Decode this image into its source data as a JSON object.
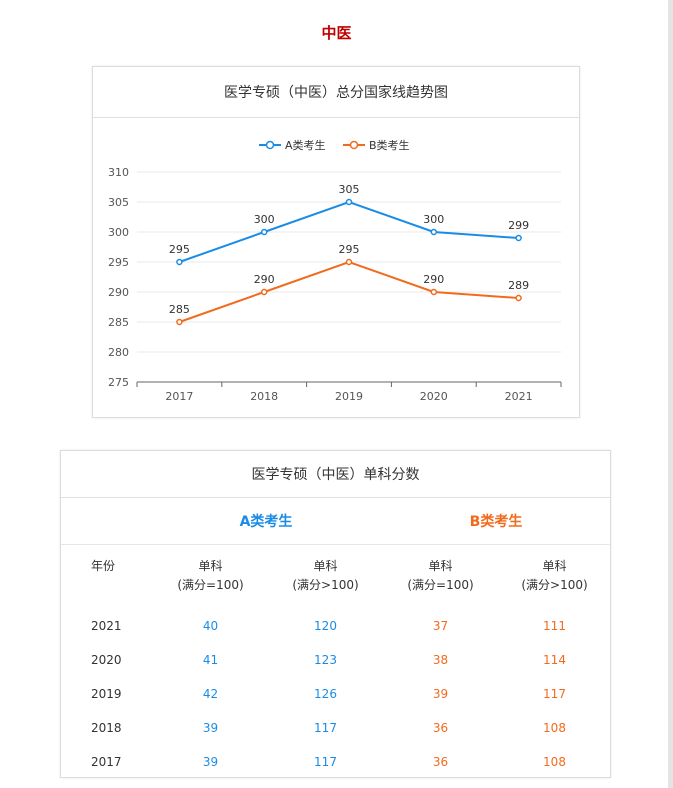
{
  "page_title": "中医",
  "chart_card": {
    "title": "医学专硕（中医）总分国家线趋势图"
  },
  "chart_data": {
    "type": "line",
    "title": "医学专硕（中医）总分国家线趋势图",
    "categories": [
      "2017",
      "2018",
      "2019",
      "2020",
      "2021"
    ],
    "series": [
      {
        "name": "A类考生",
        "values": [
          295,
          300,
          305,
          300,
          299
        ],
        "color": "#1b8ce6"
      },
      {
        "name": "B类考生",
        "values": [
          285,
          290,
          295,
          290,
          289
        ],
        "color": "#f26b1d"
      }
    ],
    "yticks": [
      275,
      280,
      285,
      290,
      295,
      300,
      305,
      310
    ],
    "ylim": [
      275,
      310
    ],
    "xlabel": "",
    "ylabel": "",
    "grid": true,
    "legend": "top-center",
    "data_labels": true
  },
  "table_card": {
    "title": "医学专硕（中医）单科分数",
    "group_a": "A类考生",
    "group_b": "B类考生",
    "year_header": "年份",
    "col_headers": [
      {
        "line1": "单科",
        "line2": "(满分=100)"
      },
      {
        "line1": "单科",
        "line2": "(满分>100)"
      },
      {
        "line1": "单科",
        "line2": "(满分=100)"
      },
      {
        "line1": "单科",
        "line2": "(满分>100)"
      }
    ],
    "rows": [
      {
        "year": "2021",
        "a100": "40",
        "a_over": "120",
        "b100": "37",
        "b_over": "111"
      },
      {
        "year": "2020",
        "a100": "41",
        "a_over": "123",
        "b100": "38",
        "b_over": "114"
      },
      {
        "year": "2019",
        "a100": "42",
        "a_over": "126",
        "b100": "39",
        "b_over": "117"
      },
      {
        "year": "2018",
        "a100": "39",
        "a_over": "117",
        "b100": "36",
        "b_over": "108"
      },
      {
        "year": "2017",
        "a100": "39",
        "a_over": "117",
        "b100": "36",
        "b_over": "108"
      }
    ]
  }
}
